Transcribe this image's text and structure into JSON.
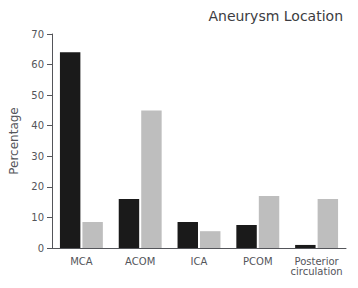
{
  "chart_data": {
    "type": "bar",
    "title": "Aneurysm Location",
    "ylabel": "Percentage",
    "categories": [
      "MCA",
      "ACOM",
      "ICA",
      "PCOM",
      "Posterior\ncirculation"
    ],
    "series": [
      {
        "color": "#1a1a1a",
        "values": [
          64,
          16,
          8.5,
          7.5,
          1
        ]
      },
      {
        "color": "#bebebe",
        "values": [
          8.5,
          45,
          5.5,
          17,
          16
        ]
      }
    ],
    "ylim": [
      0,
      70
    ],
    "yticks": [
      0,
      10,
      20,
      30,
      40,
      50,
      60,
      70
    ],
    "grid": false
  }
}
